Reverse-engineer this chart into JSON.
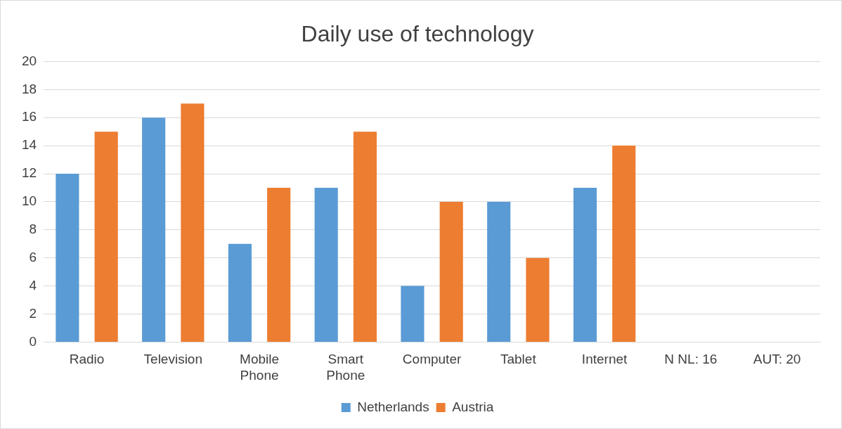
{
  "chart_data": {
    "type": "bar",
    "title": "Daily use of technology",
    "categories": [
      "Radio",
      "Television",
      "Mobile Phone",
      "Smart Phone",
      "Computer",
      "Tablet",
      "Internet",
      "N NL: 16",
      "AUT: 20"
    ],
    "series": [
      {
        "name": "Netherlands",
        "color": "#5b9bd5",
        "values": [
          12,
          16,
          7,
          11,
          4,
          10,
          11,
          null,
          null
        ]
      },
      {
        "name": "Austria",
        "color": "#ed7d31",
        "values": [
          15,
          17,
          11,
          15,
          10,
          6,
          14,
          null,
          null
        ]
      }
    ],
    "ylim": [
      0,
      20
    ],
    "yticks": [
      0,
      2,
      4,
      6,
      8,
      10,
      12,
      14,
      16,
      18,
      20
    ],
    "grid": "y",
    "legend": "bottom"
  }
}
